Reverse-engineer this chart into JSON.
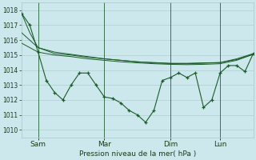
{
  "background_color": "#cce8ec",
  "grid_color": "#a8c8cc",
  "line_color": "#1a5c28",
  "text_color": "#1a3a1a",
  "xlabel_text": "Pression niveau de la mer( hPa )",
  "ylim": [
    1009.5,
    1018.5
  ],
  "yticks": [
    1010,
    1011,
    1012,
    1013,
    1014,
    1015,
    1016,
    1017,
    1018
  ],
  "xtick_labels": [
    "Sam",
    "Mar",
    "Dim",
    "Lun"
  ],
  "xtick_pos": [
    8,
    40,
    72,
    96
  ],
  "xlim": [
    0,
    112
  ],
  "vline_pos": [
    8,
    40,
    72,
    96
  ],
  "smooth1_x": [
    0,
    4,
    8,
    16,
    24,
    32,
    40,
    48,
    56,
    64,
    72,
    80,
    88,
    96,
    104,
    112
  ],
  "smooth1_y": [
    1017.8,
    1016.5,
    1015.5,
    1015.1,
    1015.0,
    1014.85,
    1014.75,
    1014.65,
    1014.55,
    1014.5,
    1014.45,
    1014.45,
    1014.48,
    1014.5,
    1014.7,
    1015.05
  ],
  "smooth2_x": [
    0,
    8,
    16,
    24,
    32,
    40,
    48,
    56,
    64,
    72,
    80,
    88,
    96,
    104,
    112
  ],
  "smooth2_y": [
    1016.5,
    1015.5,
    1015.2,
    1015.05,
    1014.9,
    1014.75,
    1014.65,
    1014.55,
    1014.48,
    1014.43,
    1014.42,
    1014.45,
    1014.5,
    1014.75,
    1015.1
  ],
  "smooth3_x": [
    0,
    8,
    16,
    24,
    32,
    40,
    48,
    56,
    64,
    72,
    80,
    88,
    96,
    104,
    112
  ],
  "smooth3_y": [
    1015.8,
    1015.2,
    1015.0,
    1014.9,
    1014.75,
    1014.65,
    1014.55,
    1014.48,
    1014.42,
    1014.38,
    1014.36,
    1014.38,
    1014.42,
    1014.65,
    1015.05
  ],
  "main_x": [
    0,
    4,
    8,
    12,
    16,
    20,
    24,
    28,
    32,
    36,
    40,
    44,
    48,
    52,
    56,
    60,
    64,
    68,
    72,
    76,
    80,
    84,
    88,
    92,
    96,
    100,
    104,
    108,
    112
  ],
  "main_y": [
    1017.8,
    1017.0,
    1015.2,
    1013.3,
    1012.5,
    1012.0,
    1013.0,
    1013.8,
    1013.8,
    1013.0,
    1012.2,
    1012.1,
    1011.8,
    1011.3,
    1011.0,
    1010.5,
    1011.3,
    1013.3,
    1013.5,
    1013.8,
    1013.5,
    1013.8,
    1011.5,
    1012.0,
    1013.8,
    1014.3,
    1014.3,
    1013.9,
    1015.1
  ]
}
